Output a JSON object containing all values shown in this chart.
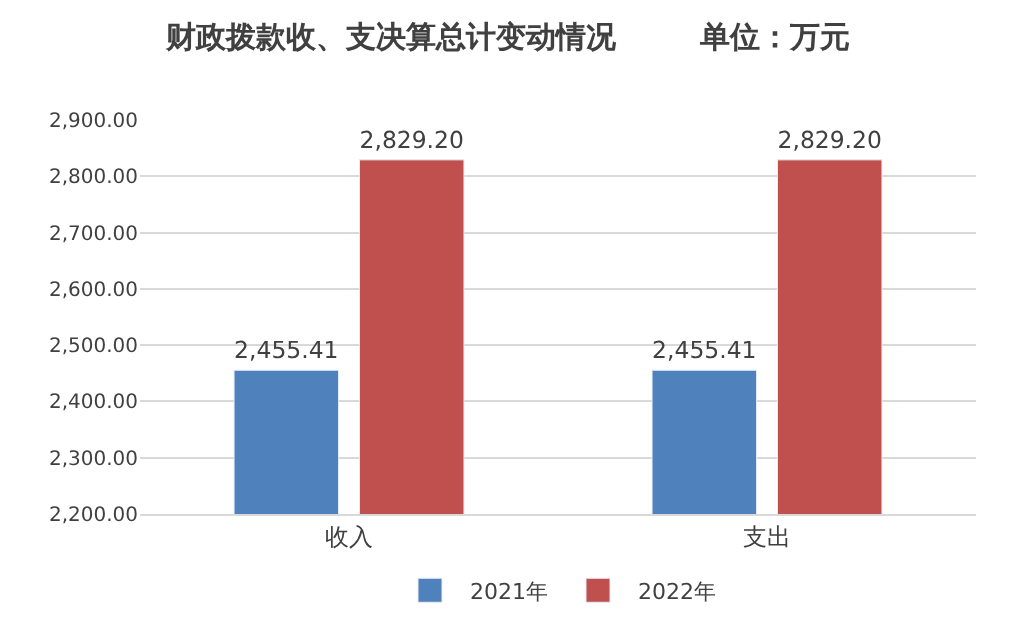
{
  "chart_data": {
    "type": "bar",
    "title": "财政拨款收、支决算总计变动情况        单位：万元",
    "categories": [
      "收入",
      "支出"
    ],
    "series": [
      {
        "name": "2021年",
        "color": "#4f81bd",
        "values": [
          2455.41,
          2455.41
        ],
        "value_labels": [
          "2,455.41",
          "2,455.41"
        ]
      },
      {
        "name": "2022年",
        "color": "#c0504d",
        "values": [
          2829.2,
          2829.2
        ],
        "value_labels": [
          "2,829.20",
          "2,829.20"
        ]
      }
    ],
    "ylim": [
      2200,
      2900
    ],
    "yticks": [
      {
        "value": 2200,
        "label": "2,200.00"
      },
      {
        "value": 2300,
        "label": "2,300.00"
      },
      {
        "value": 2400,
        "label": "2,400.00"
      },
      {
        "value": 2500,
        "label": "2,500.00"
      },
      {
        "value": 2600,
        "label": "2,600.00"
      },
      {
        "value": 2700,
        "label": "2,700.00"
      },
      {
        "value": 2800,
        "label": "2,800.00"
      },
      {
        "value": 2900,
        "label": "2,900.00"
      }
    ],
    "grid": "y",
    "legend": "bottom"
  }
}
